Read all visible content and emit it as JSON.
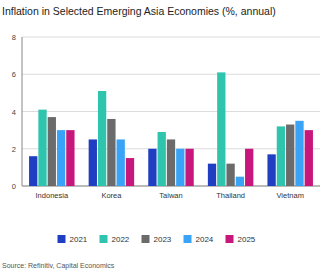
{
  "chart_data": {
    "type": "bar",
    "title": "Inflation in Selected Emerging Asia Economies (%, annual)",
    "source": "Source: Refinitiv, Capital Economics",
    "categories": [
      "Indonesia",
      "Korea",
      "Taiwan",
      "Thailand",
      "Vietnam"
    ],
    "series": [
      {
        "name": "2021",
        "color": "#1f3ec2",
        "values": [
          1.6,
          2.5,
          2.0,
          1.2,
          1.7
        ]
      },
      {
        "name": "2022",
        "color": "#2ec4ad",
        "values": [
          4.1,
          5.1,
          2.9,
          6.1,
          3.2
        ]
      },
      {
        "name": "2023",
        "color": "#6b6b6b",
        "values": [
          3.7,
          3.6,
          2.5,
          1.2,
          3.3
        ]
      },
      {
        "name": "2024",
        "color": "#38a3f7",
        "values": [
          3.0,
          2.5,
          2.0,
          0.5,
          3.5
        ]
      },
      {
        "name": "2025",
        "color": "#c8177c",
        "values": [
          3.0,
          1.5,
          2.0,
          2.0,
          3.0
        ]
      }
    ],
    "ylim": [
      0,
      8
    ],
    "yticks": [
      0,
      2,
      4,
      6,
      8
    ],
    "grid": true,
    "legend": "bottom"
  }
}
